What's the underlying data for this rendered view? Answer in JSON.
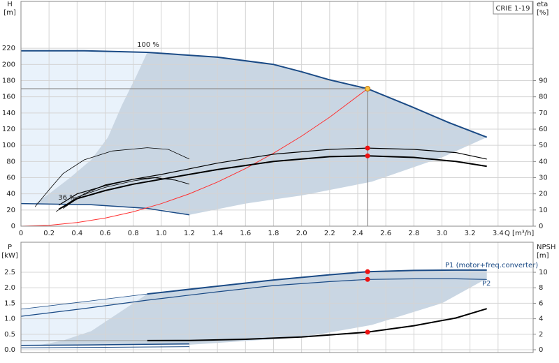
{
  "chart_data": [
    {
      "type": "line",
      "title": "CRIE 1-19",
      "xlabel": "Q [m³/h]",
      "ylabel": "H",
      "yunit": "[m]",
      "y2label": "eta",
      "y2unit": "[%]",
      "xlim": [
        0,
        3.65
      ],
      "ylim": [
        0,
        278
      ],
      "y2lim": [
        0,
        139
      ],
      "grid": true,
      "xtick_labels": true,
      "xticks": [
        {
          "value": 0,
          "label": "0"
        },
        0.2,
        0.4,
        0.6,
        0.8,
        {
          "value": 1,
          "label": "1.0"
        },
        1.2,
        1.4,
        1.6,
        1.8,
        {
          "value": 2,
          "label": "2.0"
        },
        2.2,
        2.4,
        2.6,
        2.8,
        {
          "value": 3,
          "label": "3.0"
        },
        3.2,
        3.4
      ],
      "yticks": [
        0,
        20,
        40,
        60,
        80,
        100,
        120,
        140,
        160,
        180,
        200,
        220
      ],
      "y2ticks": [
        0,
        10,
        20,
        30,
        40,
        50,
        60,
        70,
        80,
        90
      ],
      "annotations": [
        "100 %",
        "36 %"
      ],
      "regions": [
        {
          "color": "#e9f2fb",
          "x": [
            0,
            0.9,
            0.82,
            0.72,
            0.62,
            0.5,
            0.35,
            0.2,
            0.1,
            0
          ],
          "y": [
            217,
            215,
            185,
            150,
            110,
            82,
            60,
            40,
            28,
            28
          ]
        },
        {
          "color": "#c9d6e3",
          "x": [
            0.9,
            1.4,
            1.8,
            2.0,
            2.2,
            2.47,
            2.78,
            3.05,
            3.32,
            3.0,
            2.5,
            2.0,
            1.6,
            1.2,
            1.0,
            0.5,
            0.1,
            0.2,
            0.35,
            0.5,
            0.62,
            0.72,
            0.82
          ],
          "y": [
            215,
            209,
            200,
            191,
            181,
            170,
            148,
            128,
            110,
            85,
            55,
            38,
            28,
            14,
            21,
            26.5,
            28,
            40,
            60,
            82,
            110,
            150,
            185
          ]
        }
      ],
      "series": [
        {
          "color": "#1a4a85",
          "line_width": 2,
          "x": [
            0,
            0.45,
            0.9,
            1.4,
            1.8,
            2.0,
            2.2,
            2.47,
            2.78,
            3.05,
            3.32
          ],
          "values": [
            217,
            217,
            215,
            209,
            200,
            191,
            181,
            170,
            148,
            128,
            110
          ]
        },
        {
          "color": "#1a4a85",
          "line_width": 1.5,
          "x": [
            0,
            0.5,
            0.9,
            1.2
          ],
          "values": [
            28,
            26.5,
            22,
            14
          ]
        },
        {
          "color": "#ff3030",
          "line_width": 1,
          "x": [
            0,
            0.2,
            0.4,
            0.6,
            0.8,
            1.0,
            1.2,
            1.4,
            1.6,
            1.8,
            2.0,
            2.2,
            2.47
          ],
          "values": [
            0,
            1.1,
            4.5,
            10,
            17.8,
            27.9,
            40.1,
            54.6,
            71.3,
            90.3,
            111.4,
            134.8,
            170
          ]
        },
        {
          "color": "#000000",
          "line_width": 1.2,
          "axis": "y2",
          "x": [
            0.27,
            0.4,
            0.6,
            0.8,
            1.0,
            1.4,
            1.8,
            2.2,
            2.47,
            2.8,
            3.1,
            3.32
          ],
          "values": [
            13,
            20,
            25,
            29,
            32,
            39,
            44.5,
            47.5,
            48.3,
            47.5,
            45.5,
            41.5
          ]
        },
        {
          "color": "#000000",
          "line_width": 2,
          "axis": "y2",
          "x": [
            0.27,
            0.4,
            0.6,
            0.8,
            1.0,
            1.4,
            1.8,
            2.2,
            2.47,
            2.8,
            3.1,
            3.32
          ],
          "values": [
            10.5,
            17,
            22,
            26,
            29,
            35,
            40,
            43,
            43.5,
            42.5,
            40,
            37
          ]
        },
        {
          "color": "#000000",
          "line_width": 0.8,
          "axis": "y2",
          "x": [
            0.1,
            0.2,
            0.3,
            0.45,
            0.65,
            0.9,
            1.05,
            1.2
          ],
          "values": [
            12,
            22.5,
            32.5,
            41,
            46.5,
            48.5,
            47.5,
            41.5
          ]
        },
        {
          "color": "#000000",
          "line_width": 1,
          "axis": "y2",
          "x": [
            0.3,
            0.45,
            0.6,
            0.8,
            0.95,
            1.1,
            1.2
          ],
          "values": [
            11,
            20,
            25.5,
            29,
            30,
            28.5,
            26
          ]
        },
        {
          "color": "#000000",
          "line_width": 0.8,
          "axis": "y2",
          "x": [
            0.25,
            0.4,
            0.6,
            0.8,
            1.0
          ],
          "values": [
            9,
            18,
            24,
            28,
            30.5
          ]
        }
      ],
      "markers": [
        {
          "x": 2.47,
          "y": 170,
          "color": "#f7c343",
          "crosshair": true
        },
        {
          "x": 2.47,
          "y": 48.3,
          "axis": "y2",
          "color": "#ee1111"
        },
        {
          "x": 2.47,
          "y": 43.5,
          "axis": "y2",
          "color": "#ee1111"
        }
      ]
    },
    {
      "type": "line",
      "ylabel": "P",
      "yunit": "[kW]",
      "y2label": "NPSH",
      "y2unit": "[m]",
      "xlim": [
        0,
        3.65
      ],
      "ylim": [
        -0.09,
        3.47
      ],
      "y2lim": [
        -0.36,
        13.88
      ],
      "grid": true,
      "xtick_labels": false,
      "xticks": [
        0,
        0.2,
        0.4,
        0.6,
        0.8,
        1,
        1.2,
        1.4,
        1.6,
        1.8,
        2,
        2.2,
        2.4,
        2.6,
        2.8,
        3,
        3.2,
        3.4
      ],
      "yticks": [
        {
          "value": 0,
          "label": "0.0"
        },
        0.5,
        {
          "value": 1,
          "label": "1.0"
        },
        1.5,
        {
          "value": 2,
          "label": "2.0"
        },
        2.5
      ],
      "y2ticks": [
        0,
        2,
        4,
        6,
        8,
        10
      ],
      "regions": [
        {
          "color": "#e9f2fb",
          "x": [
            0,
            0.9,
            0.7,
            0.5,
            0.3,
            0.1,
            0
          ],
          "y": [
            1.31,
            1.8,
            1.2,
            0.6,
            0.3,
            0.12,
            0.12
          ]
        },
        {
          "color": "#c9d6e3",
          "x": [
            0.9,
            1.4,
            1.8,
            2.2,
            2.47,
            2.8,
            3.1,
            3.32,
            3.32,
            3.0,
            2.5,
            2.0,
            1.2,
            0.6,
            0.1,
            0.3,
            0.5,
            0.7
          ],
          "y": [
            1.8,
            2.05,
            2.25,
            2.42,
            2.52,
            2.56,
            2.57,
            2.57,
            2.3,
            1.5,
            0.8,
            0.4,
            0.16,
            0.14,
            0.12,
            0.3,
            0.6,
            1.2
          ]
        }
      ],
      "series": [
        {
          "name": "P1 (motor+freq.converter)",
          "color": "#1a4a85",
          "line_width": 2,
          "x": [
            0.9,
            1.4,
            1.8,
            2.2,
            2.47,
            2.8,
            3.1,
            3.32
          ],
          "values": [
            1.8,
            2.05,
            2.25,
            2.42,
            2.52,
            2.56,
            2.57,
            2.57
          ]
        },
        {
          "color": "#1a4a85",
          "line_width": 0.8,
          "x": [
            0,
            0.45,
            0.9
          ],
          "values": [
            1.31,
            1.55,
            1.8
          ]
        },
        {
          "name": "P2",
          "color": "#1a4a85",
          "line_width": 1.2,
          "x": [
            0,
            0.45,
            0.9,
            1.4,
            1.8,
            2.2,
            2.47,
            2.8,
            3.1,
            3.32
          ],
          "values": [
            1.08,
            1.33,
            1.6,
            1.87,
            2.07,
            2.2,
            2.27,
            2.29,
            2.29,
            2.27
          ]
        },
        {
          "color": "#1a4a85",
          "line_width": 1.5,
          "x": [
            0,
            0.6,
            1.2
          ],
          "values": [
            0.14,
            0.16,
            0.19
          ]
        },
        {
          "color": "#1a4a85",
          "line_width": 1,
          "x": [
            0,
            0.6,
            1.2
          ],
          "values": [
            0.06,
            0.08,
            0.1
          ]
        },
        {
          "color": "#000000",
          "line_width": 2,
          "axis": "y2",
          "x": [
            0.9,
            1.2,
            1.6,
            2.0,
            2.47,
            2.8,
            3.1,
            3.32
          ],
          "values": [
            1.18,
            1.2,
            1.35,
            1.65,
            2.27,
            3.1,
            4.1,
            5.3
          ]
        },
        {
          "color": "#999999",
          "line_width": 1,
          "axis": "y2",
          "x": [
            0,
            0.9
          ],
          "values": [
            1.18,
            1.18
          ]
        }
      ],
      "markers": [
        {
          "x": 2.47,
          "y": 2.52,
          "color": "#ee1111"
        },
        {
          "x": 2.47,
          "y": 2.27,
          "color": "#ee1111"
        },
        {
          "x": 2.47,
          "y": 2.27,
          "axis": "y2",
          "color": "#ee1111"
        }
      ]
    }
  ]
}
